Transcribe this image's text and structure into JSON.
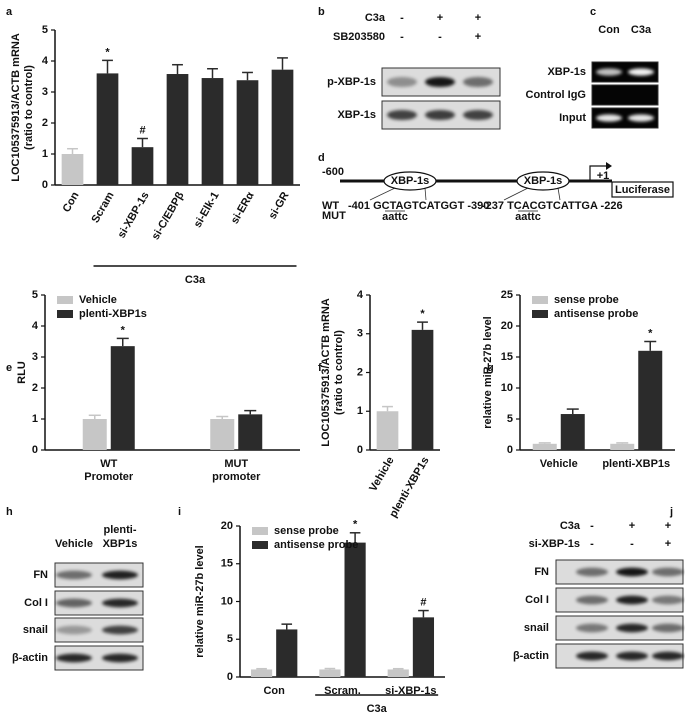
{
  "chart_data": [
    {
      "type": "bar",
      "label": "a",
      "y_label": [
        "LOC105375913/ACTB mRNA",
        "(ratio to control)"
      ],
      "categories": [
        "Con",
        "Scram",
        "si-XBP-1s",
        "si-C/EBPβ",
        "si-Elk-1",
        "si-ERα",
        "si-GR"
      ],
      "series": [
        {
          "colors": [
            "#c6c6c6",
            "#2b2b2b",
            "#2b2b2b",
            "#2b2b2b",
            "#2b2b2b",
            "#2b2b2b",
            "#2b2b2b"
          ],
          "values": [
            1.0,
            3.6,
            1.22,
            3.58,
            3.45,
            3.38,
            3.72
          ],
          "error": [
            0.17,
            0.42,
            0.28,
            0.3,
            0.3,
            0.25,
            0.38
          ],
          "annotations": [
            null,
            "*",
            "#",
            null,
            null,
            null,
            null
          ]
        }
      ],
      "ylim": [
        0,
        5
      ],
      "yticks": [
        0,
        1,
        2,
        3,
        4,
        5
      ],
      "group": {
        "label": "C3a",
        "from": "Scram",
        "to": "si-GR"
      }
    },
    {
      "type": "bar",
      "label": "e",
      "y_label": [
        "RLU"
      ],
      "categories": [
        [
          "WT",
          "Promoter"
        ],
        [
          "MUT",
          "promoter"
        ]
      ],
      "series": [
        {
          "name": "Vehicle",
          "color": "#c6c6c6",
          "values": [
            1.0,
            1.0
          ],
          "error": [
            0.12,
            0.08
          ],
          "annotations": [
            null,
            null
          ]
        },
        {
          "name": "plenti-XBP1s",
          "color": "#2b2b2b",
          "values": [
            3.35,
            1.15
          ],
          "error": [
            0.25,
            0.12
          ],
          "annotations": [
            "*",
            null
          ]
        }
      ],
      "ylim": [
        0,
        5
      ],
      "yticks": [
        0,
        1,
        2,
        3,
        4,
        5
      ],
      "legend": "top-left"
    },
    {
      "type": "bar",
      "label": "f",
      "y_label": [
        "LOC105375913/ACTB mRNA",
        "(ratio to control)"
      ],
      "categories": [
        "Vehicle",
        "plenti-XBP1s"
      ],
      "series": [
        {
          "colors": [
            "#c6c6c6",
            "#2b2b2b"
          ],
          "values": [
            1.0,
            3.1
          ],
          "error": [
            0.12,
            0.2
          ],
          "annotations": [
            null,
            "*"
          ]
        }
      ],
      "ylim": [
        0,
        4
      ],
      "yticks": [
        0,
        1,
        2,
        3,
        4
      ]
    },
    {
      "type": "bar",
      "label": "g",
      "y_label": [
        "relative miR-27b level"
      ],
      "categories": [
        "Vehicle",
        "plenti-XBP1s"
      ],
      "series": [
        {
          "name": "sense probe",
          "color": "#c6c6c6",
          "values": [
            1.0,
            1.0
          ],
          "error": [
            0.15,
            0.15
          ],
          "annotations": [
            null,
            null
          ]
        },
        {
          "name": "antisense  probe",
          "color": "#2b2b2b",
          "values": [
            5.8,
            16.0
          ],
          "error": [
            0.8,
            1.5
          ],
          "annotations": [
            null,
            "*"
          ]
        }
      ],
      "ylim": [
        0,
        25
      ],
      "yticks": [
        0,
        5,
        10,
        15,
        20,
        25
      ],
      "legend": "top-left"
    },
    {
      "type": "bar",
      "label": "i",
      "y_label": [
        "relative miR-27b level"
      ],
      "categories": [
        "Con",
        "Scram.",
        "si-XBP-1s"
      ],
      "series": [
        {
          "name": "sense probe",
          "color": "#c6c6c6",
          "values": [
            1.0,
            1.0,
            1.0
          ],
          "error": [
            0.1,
            0.12,
            0.1
          ],
          "annotations": [
            null,
            null,
            null
          ]
        },
        {
          "name": "antisense probe",
          "color": "#2b2b2b",
          "values": [
            6.3,
            17.8,
            7.9
          ],
          "error": [
            0.7,
            1.3,
            0.9
          ],
          "annotations": [
            null,
            "*",
            "#"
          ]
        }
      ],
      "ylim": [
        0,
        20
      ],
      "yticks": [
        0,
        5,
        10,
        15,
        20
      ],
      "legend": "top-left",
      "group": {
        "label": "C3a",
        "from": "Scram.",
        "to": "si-XBP-1s"
      }
    }
  ],
  "blots": [
    {
      "label": "b",
      "conditions": [
        {
          "name": "C3a",
          "values": [
            "-",
            "+",
            "+"
          ]
        },
        {
          "name": "SB203580",
          "values": [
            "-",
            "-",
            "+"
          ]
        }
      ],
      "rows": [
        "p-XBP-1s",
        "XBP-1s"
      ]
    },
    {
      "label": "c",
      "columns": [
        [
          "Con"
        ],
        [
          "C3a"
        ]
      ],
      "rows": [
        "XBP-1s",
        "Control IgG",
        "Input"
      ]
    },
    {
      "label": "h",
      "columns": [
        [
          "Vehicle"
        ],
        [
          "plenti-",
          "XBP1s"
        ]
      ],
      "rows": [
        "FN",
        "Col I",
        "snail",
        "β-actin"
      ]
    },
    {
      "label": "j",
      "conditions": [
        {
          "name": "C3a",
          "values": [
            "-",
            "+",
            "+"
          ]
        },
        {
          "name": "si-XBP-1s",
          "values": [
            "-",
            "-",
            "+"
          ]
        }
      ],
      "rows": [
        "FN",
        "Col I",
        "snail",
        "β-actin"
      ]
    }
  ],
  "diagram": {
    "label": "d",
    "start": "-600",
    "row_labels": [
      "WT",
      "MUT"
    ],
    "sites": [
      {
        "name": "XBP-1s",
        "wt": "-401 GCTAGTCATGGT -390",
        "mut": "aattc"
      },
      {
        "name": "XBP-1s",
        "wt": "-237 TCACGTCATTGA -226",
        "mut": "aattc"
      }
    ],
    "tss": "+1",
    "reporter": "Luciferase"
  }
}
